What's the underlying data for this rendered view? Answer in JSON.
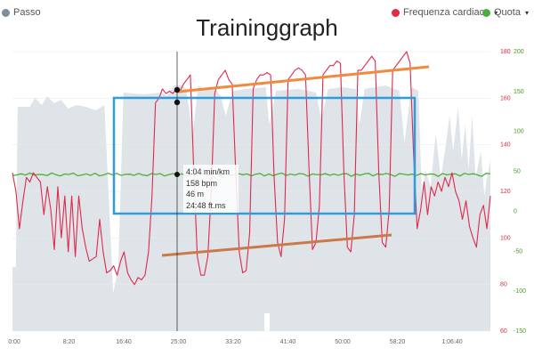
{
  "title": "Traininggraph",
  "legend": {
    "pace_label": "Passo",
    "hr_label": "Frequenza cardiaca",
    "quota_label": "Quota",
    "pace_color": "#8a9aa8",
    "hr_color": "#e0294d",
    "quota_color": "#4cae3a"
  },
  "tooltip": {
    "pace": "4:04 min/km",
    "hr": "158 bpm",
    "quota": "46 m",
    "time": "24:48 ft.ms"
  },
  "chart_data": {
    "type": "line",
    "x_ticks": [
      "0:00",
      "8:20",
      "16:40",
      "25:00",
      "33:20",
      "41:40",
      "50:00",
      "58:20",
      "1:06:40"
    ],
    "left_ticks": [
      "",
      "",
      "",
      "",
      "",
      "",
      ""
    ],
    "hr_ticks": [
      "180",
      "160",
      "140",
      "120",
      "100",
      "80",
      "60"
    ],
    "quota_ticks": [
      "200",
      "150",
      "100",
      "50",
      "0",
      "-50",
      "-100",
      "-150"
    ],
    "hr_ylim": [
      60,
      180
    ],
    "quota_ylim": [
      -150,
      200
    ],
    "crosshair_time": "24:48",
    "series": [
      {
        "name": "Frequenza cardiaca",
        "color": "#e0294d",
        "points": [
          [
            0,
            128
          ],
          [
            1,
            120
          ],
          [
            2,
            104
          ],
          [
            3,
            116
          ],
          [
            4,
            126
          ],
          [
            5,
            124
          ],
          [
            6,
            128
          ],
          [
            7,
            126
          ],
          [
            8,
            124
          ],
          [
            9,
            110
          ],
          [
            10,
            122
          ],
          [
            11,
            112
          ],
          [
            12,
            95
          ],
          [
            13,
            122
          ],
          [
            14,
            100
          ],
          [
            15,
            118
          ],
          [
            16,
            94
          ],
          [
            17,
            118
          ],
          [
            18,
            92
          ],
          [
            19,
            118
          ],
          [
            20,
            104
          ],
          [
            21,
            96
          ],
          [
            22,
            90
          ],
          [
            23,
            91
          ],
          [
            24,
            92
          ],
          [
            25,
            108
          ],
          [
            26,
            94
          ],
          [
            27,
            85
          ],
          [
            28,
            86
          ],
          [
            29,
            88
          ],
          [
            30,
            84
          ],
          [
            31,
            90
          ],
          [
            32,
            94
          ],
          [
            33,
            85
          ],
          [
            34,
            82
          ],
          [
            35,
            80
          ],
          [
            36,
            83
          ],
          [
            37,
            82
          ],
          [
            38,
            84
          ],
          [
            39,
            94
          ],
          [
            40,
            118
          ],
          [
            41,
            158
          ],
          [
            42,
            160
          ],
          [
            43,
            164
          ],
          [
            44,
            162
          ],
          [
            45,
            163
          ],
          [
            46,
            162
          ],
          [
            47,
            164
          ],
          [
            48,
            163
          ],
          [
            49,
            166
          ],
          [
            50,
            168
          ],
          [
            51,
            170
          ],
          [
            52,
            128
          ],
          [
            53,
            92
          ],
          [
            54,
            84
          ],
          [
            55,
            84
          ],
          [
            56,
            92
          ],
          [
            57,
            120
          ],
          [
            58,
            162
          ],
          [
            59,
            168
          ],
          [
            60,
            170
          ],
          [
            61,
            172
          ],
          [
            62,
            168
          ],
          [
            63,
            166
          ],
          [
            64,
            128
          ],
          [
            65,
            94
          ],
          [
            66,
            85
          ],
          [
            67,
            86
          ],
          [
            68,
            102
          ],
          [
            69,
            164
          ],
          [
            70,
            168
          ],
          [
            71,
            170
          ],
          [
            72,
            170
          ],
          [
            73,
            171
          ],
          [
            74,
            170
          ],
          [
            75,
            126
          ],
          [
            76,
            98
          ],
          [
            77,
            92
          ],
          [
            78,
            108
          ],
          [
            79,
            168
          ],
          [
            80,
            170
          ],
          [
            81,
            172
          ],
          [
            82,
            173
          ],
          [
            83,
            172
          ],
          [
            84,
            170
          ],
          [
            85,
            130
          ],
          [
            86,
            95
          ],
          [
            87,
            98
          ],
          [
            88,
            114
          ],
          [
            89,
            170
          ],
          [
            90,
            172
          ],
          [
            91,
            174
          ],
          [
            92,
            174
          ],
          [
            93,
            176
          ],
          [
            94,
            175
          ],
          [
            95,
            128
          ],
          [
            96,
            96
          ],
          [
            97,
            94
          ],
          [
            98,
            110
          ],
          [
            99,
            172
          ],
          [
            100,
            172
          ],
          [
            101,
            174
          ],
          [
            102,
            176
          ],
          [
            103,
            178
          ],
          [
            104,
            176
          ],
          [
            105,
            128
          ],
          [
            106,
            98
          ],
          [
            107,
            96
          ],
          [
            108,
            112
          ],
          [
            109,
            172
          ],
          [
            110,
            174
          ],
          [
            111,
            176
          ],
          [
            112,
            178
          ],
          [
            113,
            180
          ],
          [
            114,
            175
          ],
          [
            115,
            135
          ],
          [
            116,
            104
          ],
          [
            117,
            112
          ],
          [
            118,
            124
          ],
          [
            119,
            110
          ],
          [
            120,
            122
          ],
          [
            121,
            118
          ],
          [
            122,
            124
          ],
          [
            123,
            120
          ],
          [
            124,
            126
          ],
          [
            125,
            122
          ],
          [
            126,
            128
          ],
          [
            127,
            120
          ],
          [
            128,
            116
          ],
          [
            129,
            108
          ],
          [
            130,
            116
          ],
          [
            131,
            105
          ],
          [
            132,
            100
          ],
          [
            133,
            96
          ],
          [
            134,
            110
          ],
          [
            135,
            114
          ],
          [
            136,
            104
          ],
          [
            137,
            118
          ]
        ]
      },
      {
        "name": "Quota",
        "color": "#4cae3a",
        "values": [
          48,
          50,
          52,
          48,
          52,
          49,
          51,
          50,
          47,
          52,
          50,
          48,
          51,
          49,
          52,
          48,
          50,
          51,
          47,
          52
        ]
      },
      {
        "name": "Passo",
        "color": "#dfe4e8"
      }
    ],
    "annotations": [
      {
        "type": "rectangle",
        "color": "#2f9ae0"
      },
      {
        "type": "trend-line-upper",
        "color": "#f08a3c"
      },
      {
        "type": "trend-line-lower",
        "color": "#c97a4a"
      }
    ]
  }
}
